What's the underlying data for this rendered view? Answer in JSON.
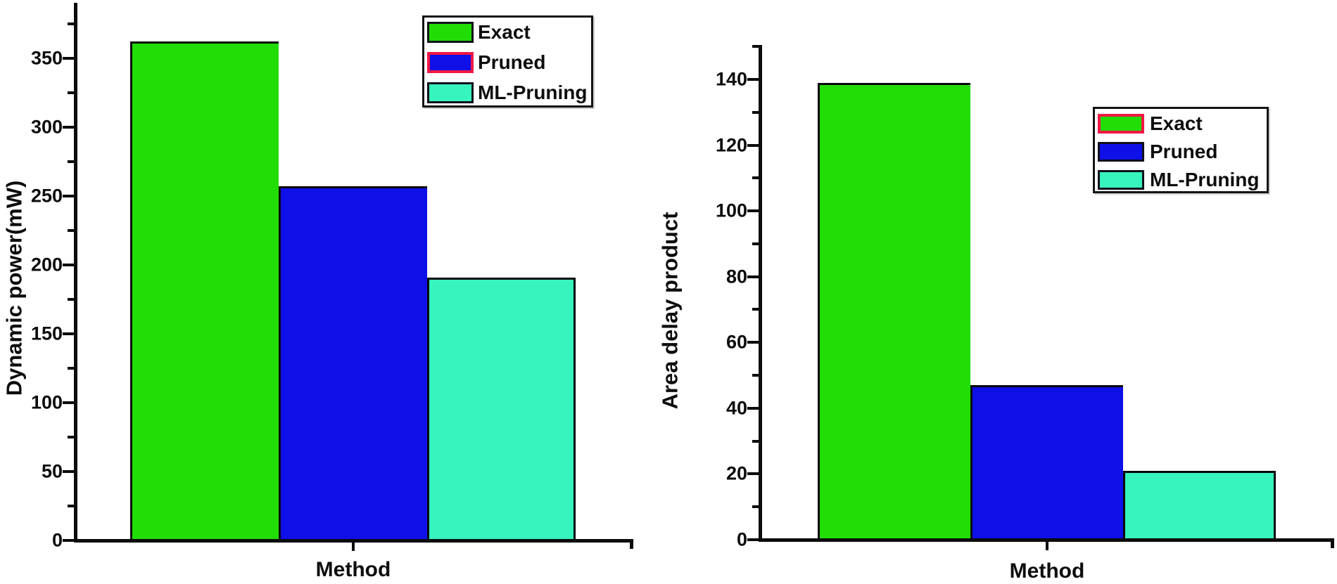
{
  "figure": {
    "background": "#ffffff",
    "description": "Two bar charts comparing methods"
  },
  "chart_data": [
    {
      "type": "bar",
      "title": "",
      "categories": [
        "Exact",
        "Pruned",
        "ML-Pruning"
      ],
      "values": [
        362,
        257,
        191
      ],
      "xlabel": "Method",
      "ylabel": "Dynamic power(mW)",
      "ylim": [
        0,
        390
      ],
      "yticks_major": [
        0,
        50,
        100,
        150,
        200,
        250,
        300,
        350
      ],
      "ytick_minor_step": 25,
      "ytick_minor_max": 375,
      "grid": false,
      "bar_colors": [
        "#22dd05",
        "#0f0fe8",
        "#37f3bd"
      ],
      "bar_border_color": "#07070d",
      "legend": {
        "entries": [
          "Exact",
          "Pruned",
          "ML-Pruning"
        ],
        "position": "top-right-inside",
        "highlighted_entry": "Pruned",
        "highlight_border_color": "#f21845"
      }
    },
    {
      "type": "bar",
      "title": "",
      "categories": [
        "Exact",
        "Pruned",
        "ML-Pruning"
      ],
      "values": [
        139,
        47,
        21
      ],
      "xlabel": "Method",
      "ylabel": "Area delay product",
      "ylim": [
        0,
        150
      ],
      "yticks_major": [
        0,
        20,
        40,
        60,
        80,
        100,
        120,
        140
      ],
      "ytick_minor_step": 10,
      "ytick_minor_max": 150,
      "grid": false,
      "bar_colors": [
        "#22dd05",
        "#0f0fe8",
        "#37f3bd"
      ],
      "bar_border_color": "#07070d",
      "legend": {
        "entries": [
          "Exact",
          "Pruned",
          "ML-Pruning"
        ],
        "position": "middle-right-inside",
        "highlighted_entry": "Exact",
        "highlight_border_color": "#f21845"
      }
    }
  ]
}
